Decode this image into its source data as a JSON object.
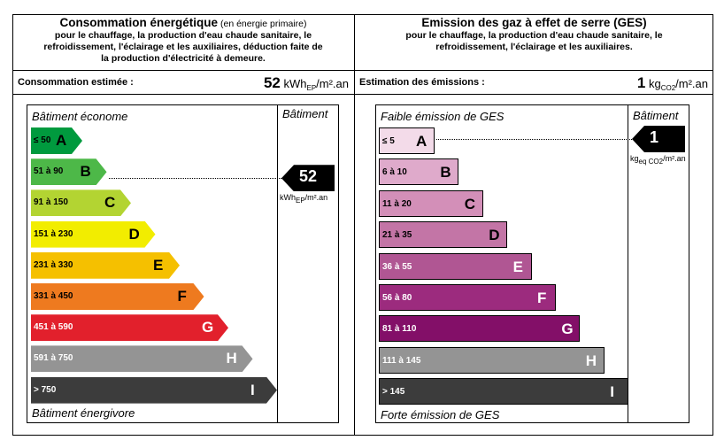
{
  "energy": {
    "title_main": "Consommation énergétique",
    "title_paren": "(en énergie primaire)",
    "desc_lines": [
      "pour le chauffage, la production d'eau chaude sanitaire, le",
      "refroidissement, l'éclairage et les auxiliaires, déduction faite de",
      "la production d'électricité à demeure."
    ],
    "estimate_label": "Consommation estimée :",
    "estimate_value": "52",
    "estimate_unit_pre": "kWh",
    "estimate_unit_sub": "EP",
    "estimate_unit_post": "/m².an",
    "top_label": "Bâtiment économe",
    "bottom_label": "Bâtiment énergivore",
    "column_label": "Bâtiment",
    "marker_value": "52",
    "marker_unit_pre": "kWh",
    "marker_unit_sub": "EP",
    "marker_unit_post": "/m².an",
    "marker_class_index": 1,
    "classes": [
      {
        "range": "≤ 50",
        "letter": "A",
        "color": "#009a3e",
        "text_color": "#000000"
      },
      {
        "range": "51 à 90",
        "letter": "B",
        "color": "#4db848",
        "text_color": "#000000"
      },
      {
        "range": "91 à 150",
        "letter": "C",
        "color": "#b3d432",
        "text_color": "#000000"
      },
      {
        "range": "151 à 230",
        "letter": "D",
        "color": "#f2ed00",
        "text_color": "#000000"
      },
      {
        "range": "231 à 330",
        "letter": "E",
        "color": "#f5c000",
        "text_color": "#000000"
      },
      {
        "range": "331 à 450",
        "letter": "F",
        "color": "#ee7a1f",
        "text_color": "#000000"
      },
      {
        "range": "451 à 590",
        "letter": "G",
        "color": "#e2202c",
        "text_color": "#ffffff"
      },
      {
        "range": "591 à 750",
        "letter": "H",
        "color": "#949494",
        "text_color": "#ffffff"
      },
      {
        "range": "> 750",
        "letter": "I",
        "color": "#3c3c3c",
        "text_color": "#ffffff"
      }
    ]
  },
  "ges": {
    "title_main": "Emission des gaz à effet de serre (GES)",
    "desc_lines": [
      "pour le chauffage, la production d'eau chaude sanitaire, le",
      "refroidissement, l'éclairage et les auxiliaires."
    ],
    "estimate_label": "Estimation des émissions :",
    "estimate_value": "1",
    "estimate_unit_pre": "kg",
    "estimate_unit_sub": "CO2",
    "estimate_unit_post": "/m².an",
    "top_label": "Faible émission de GES",
    "bottom_label": "Forte émission de GES",
    "column_label": "Bâtiment",
    "marker_value": "1",
    "marker_unit_pre": "kg",
    "marker_unit_sub": "eq CO2",
    "marker_unit_post": "/m².an",
    "marker_class_index": 0,
    "classes": [
      {
        "range": "≤ 5",
        "letter": "A",
        "color": "#f3dbe9",
        "text_color": "#000000"
      },
      {
        "range": "6 à 10",
        "letter": "B",
        "color": "#dfaacb",
        "text_color": "#000000"
      },
      {
        "range": "11 à 20",
        "letter": "C",
        "color": "#d38fb8",
        "text_color": "#000000"
      },
      {
        "range": "21 à 35",
        "letter": "D",
        "color": "#c375a6",
        "text_color": "#000000"
      },
      {
        "range": "36 à 55",
        "letter": "E",
        "color": "#b05693",
        "text_color": "#ffffff"
      },
      {
        "range": "56 à 80",
        "letter": "F",
        "color": "#9c2b7e",
        "text_color": "#ffffff"
      },
      {
        "range": "81 à 110",
        "letter": "G",
        "color": "#830f68",
        "text_color": "#ffffff"
      },
      {
        "range": "111 à 145",
        "letter": "H",
        "color": "#949494",
        "text_color": "#ffffff"
      },
      {
        "range": "> 145",
        "letter": "I",
        "color": "#3c3c3c",
        "text_color": "#ffffff"
      }
    ]
  }
}
